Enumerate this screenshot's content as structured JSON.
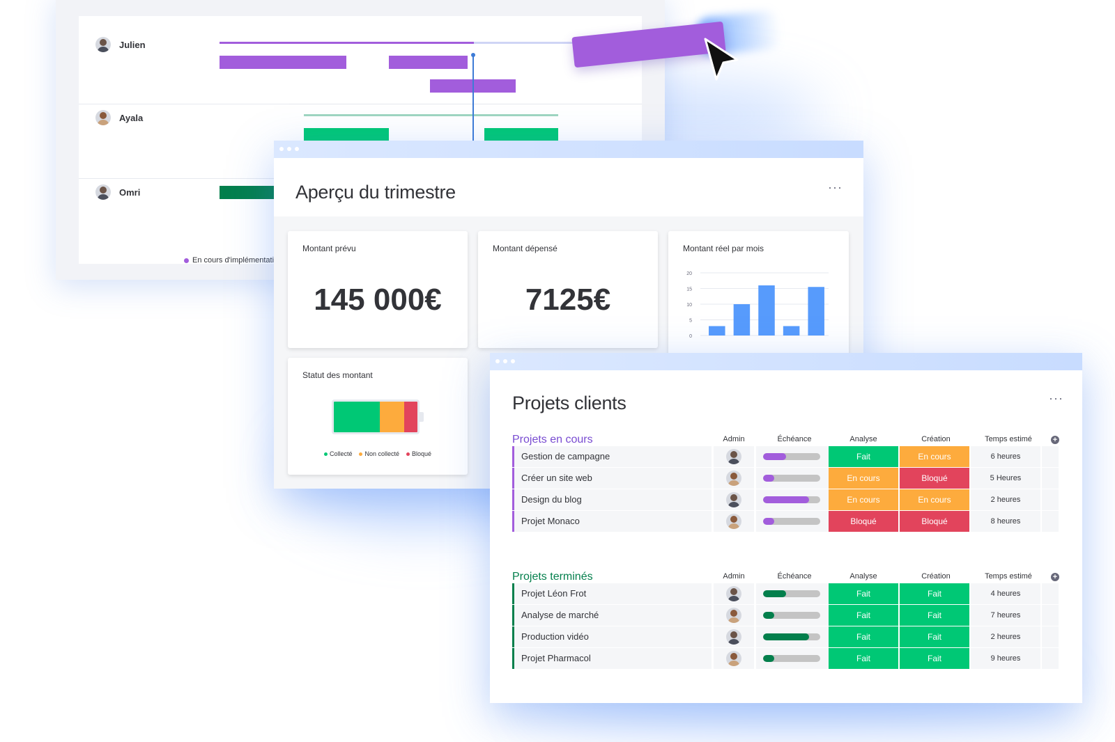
{
  "gantt": {
    "rows": [
      {
        "name": "Julien"
      },
      {
        "name": "Ayala"
      },
      {
        "name": "Omri"
      }
    ],
    "legend": [
      {
        "label": "En cours d'implémentation",
        "color": "#a25ddc"
      }
    ]
  },
  "apercu": {
    "title": "Aperçu du trimestre",
    "more": "···",
    "planned": {
      "label": "Montant prévu",
      "value": "145 000€"
    },
    "spent": {
      "label": "Montant dépensé",
      "value": "7125€"
    },
    "monthly": {
      "label": "Montant réel par mois"
    },
    "status": {
      "label": "Statut des montant",
      "legend": {
        "collected": "Collecté",
        "not_collected": "Non collecté",
        "blocked": "Bloqué"
      },
      "fractions": {
        "collected": 0.55,
        "not_collected": 0.29,
        "blocked": 0.16
      }
    }
  },
  "chart_data": {
    "type": "bar",
    "title": "Montant réel par mois",
    "yticks": [
      "20",
      "15",
      "10",
      "5",
      "0"
    ],
    "ylim": [
      0,
      20
    ],
    "values": [
      3,
      10,
      16,
      3,
      15.5
    ],
    "color": "#579bfc",
    "grid": true
  },
  "projets": {
    "title": "Projets clients",
    "more": "···",
    "columns": {
      "admin": "Admin",
      "deadline": "Échéance",
      "analysis": "Analyse",
      "creation": "Création",
      "time": "Temps estimé"
    },
    "groups": [
      {
        "title": "Projets en cours",
        "color": "#784bd1",
        "bar": "#a25ddc",
        "rows": [
          {
            "name": "Gestion de campagne",
            "progress": 0.4,
            "analysis": "Fait",
            "creation": "En cours",
            "time": "6 heures"
          },
          {
            "name": "Créer un site web",
            "progress": 0.2,
            "analysis": "En cours",
            "creation": "Bloqué",
            "time": "5 Heures"
          },
          {
            "name": "Design du blog",
            "progress": 0.8,
            "analysis": "En cours",
            "creation": "En cours",
            "time": "2 heures"
          },
          {
            "name": "Projet Monaco",
            "progress": 0.2,
            "analysis": "Bloqué",
            "creation": "Bloqué",
            "time": "8 heures"
          }
        ]
      },
      {
        "title": "Projets terminés",
        "color": "#037f4c",
        "bar": "#037f4c",
        "rows": [
          {
            "name": "Projet Léon Frot",
            "progress": 0.4,
            "analysis": "Fait",
            "creation": "Fait",
            "time": "4 heures"
          },
          {
            "name": "Analyse de marché",
            "progress": 0.2,
            "analysis": "Fait",
            "creation": "Fait",
            "time": "7 heures"
          },
          {
            "name": "Production vidéo",
            "progress": 0.8,
            "analysis": "Fait",
            "creation": "Fait",
            "time": "2 heures"
          },
          {
            "name": "Projet Pharmacol",
            "progress": 0.2,
            "analysis": "Fait",
            "creation": "Fait",
            "time": "9 heures"
          }
        ]
      }
    ],
    "status_colors": {
      "Fait": "#00c875",
      "En cours": "#fdab3d",
      "Bloqué": "#e2445c"
    }
  }
}
